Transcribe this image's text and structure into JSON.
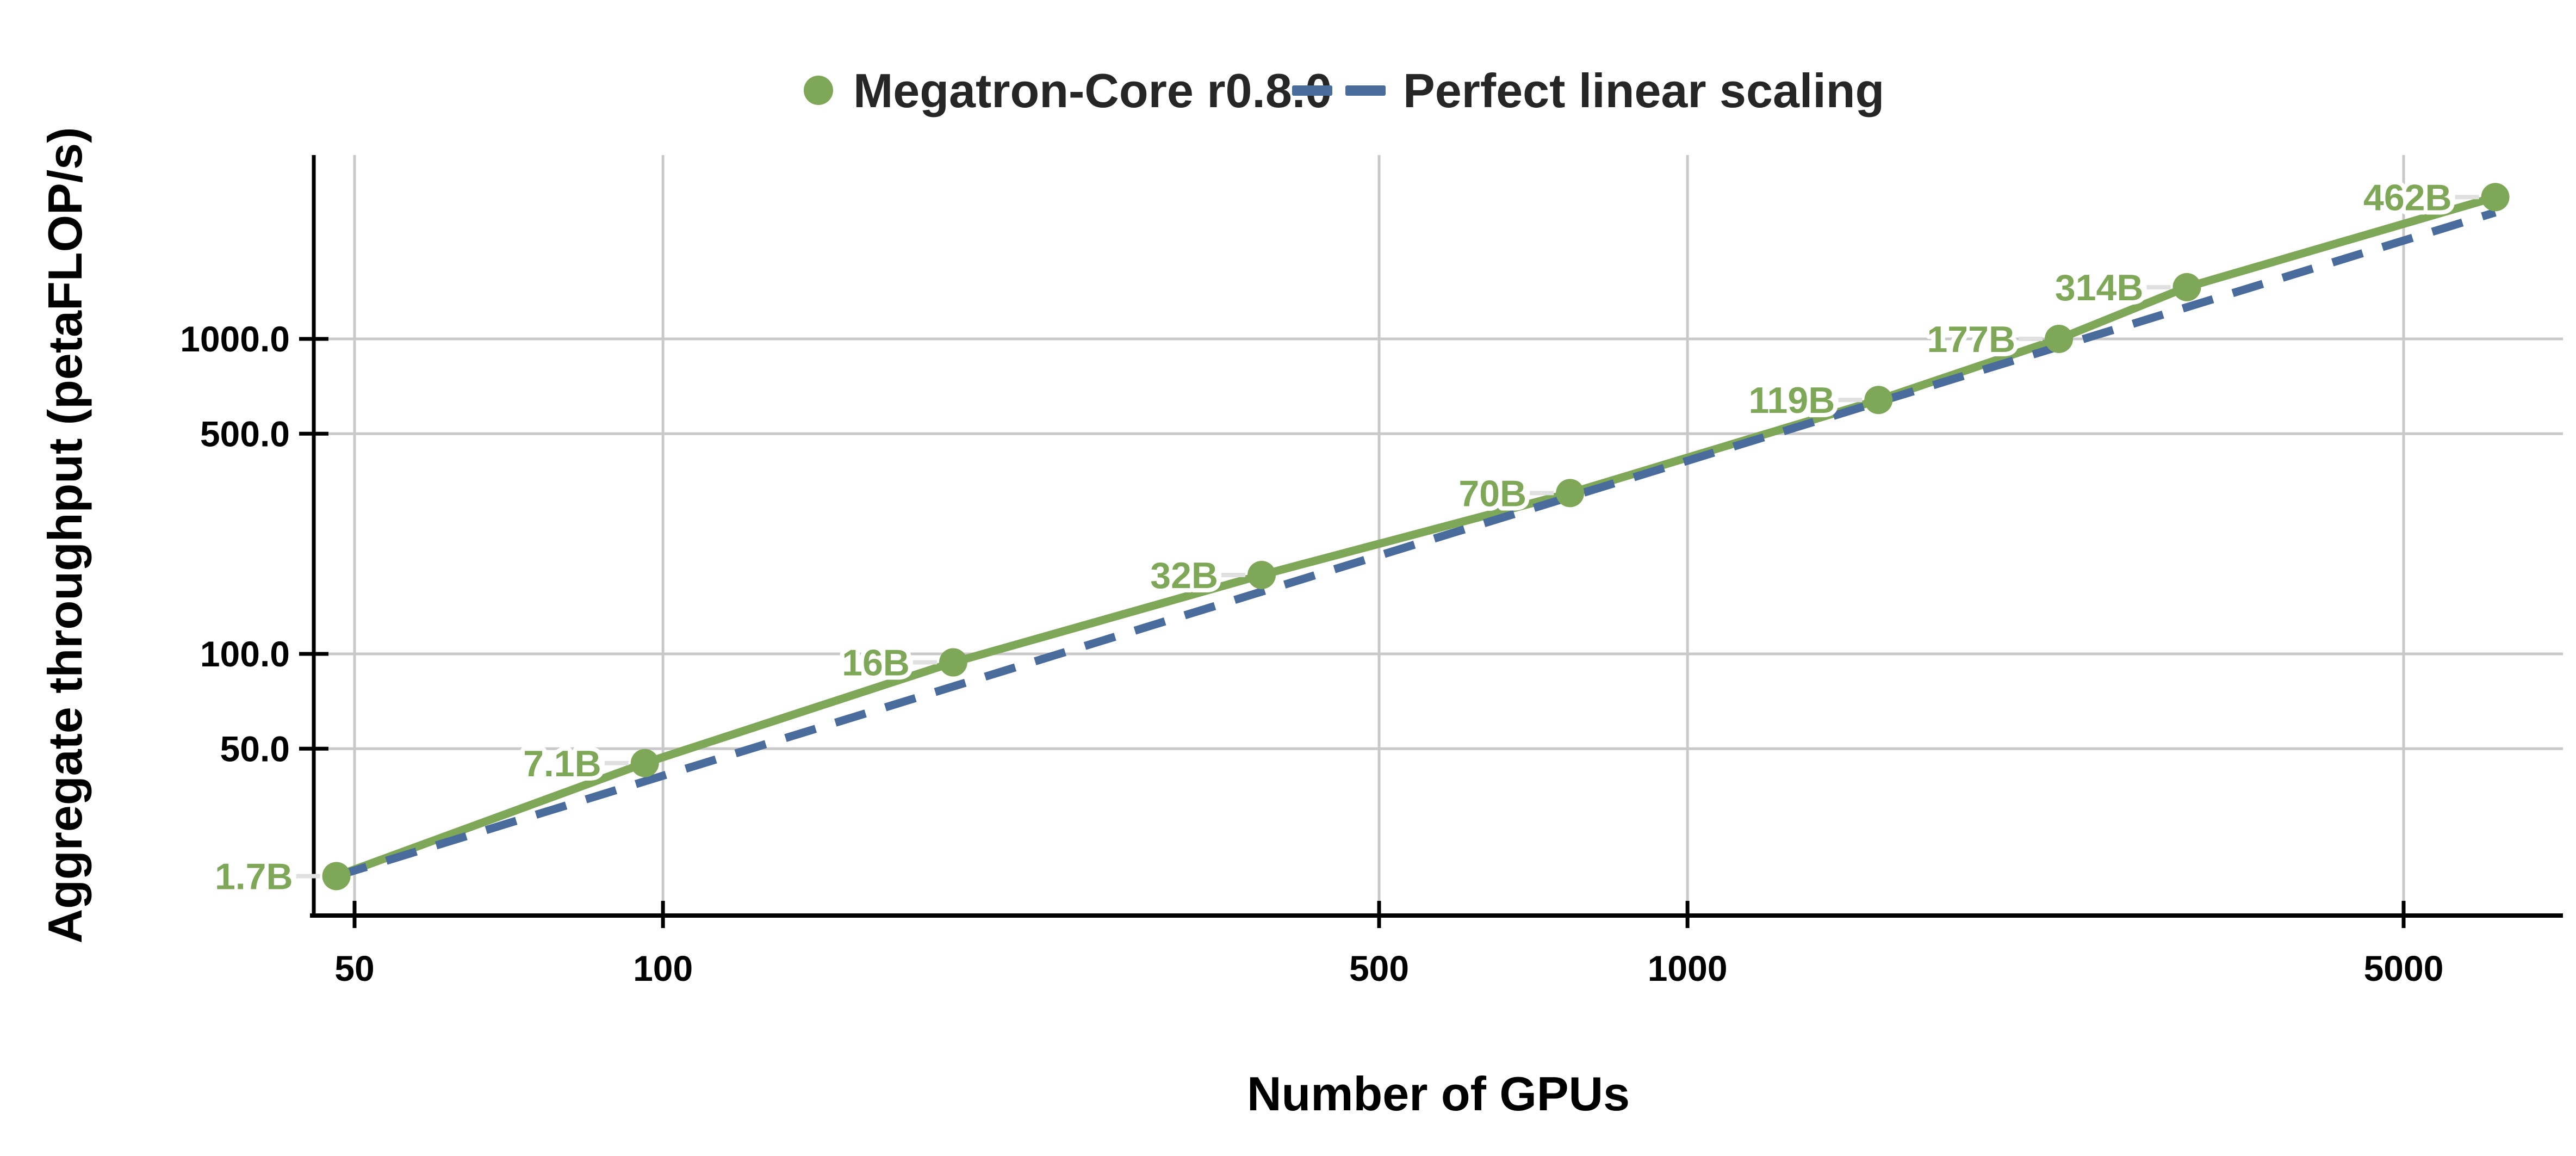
{
  "legend": {
    "series1_label": "Megatron-Core r0.8.0",
    "series2_label": "Perfect linear scaling"
  },
  "colors": {
    "megatron_green": "#7EA757",
    "perfect_blue": "#4A6C9C",
    "gridline_gray": "#C9C9C9",
    "leader_gray": "#E0E0E0",
    "axis_black": "#000000",
    "legend_text": "#262626",
    "background": "#FFFFFF"
  },
  "chart_data": {
    "type": "line",
    "title": "",
    "xlabel": "Number of GPUs",
    "ylabel": "Aggregate throughput (petaFLOP/s)",
    "x_scale": "log",
    "y_scale": "log",
    "grid": true,
    "legend_position": "top-center",
    "x_axis": {
      "label": "Number of GPUs",
      "ticks": [
        {
          "value": 50,
          "label": "50"
        },
        {
          "value": 100,
          "label": "100"
        },
        {
          "value": 500,
          "label": "500"
        },
        {
          "value": 1000,
          "label": "1000"
        },
        {
          "value": 5000,
          "label": "5000"
        }
      ],
      "range": [
        45,
        7200
      ]
    },
    "y_axis": {
      "label": "Aggregate throughput (petaFLOP/s)",
      "ticks": [
        {
          "value": 1000,
          "label": "1000.0"
        },
        {
          "value": 500,
          "label": "500.0"
        },
        {
          "value": 100,
          "label": "100.0"
        },
        {
          "value": 50,
          "label": "50.0"
        }
      ],
      "range": [
        15,
        3800
      ]
    },
    "series": [
      {
        "name": "Megatron-Core r0.8.0",
        "color": "#7EA757",
        "style": "solid",
        "marker": "circle",
        "points": [
          {
            "gpus": 48,
            "pflops": 19.7,
            "label": "1.7B"
          },
          {
            "gpus": 96,
            "pflops": 45,
            "label": "7.1B"
          },
          {
            "gpus": 192,
            "pflops": 94,
            "label": "16B"
          },
          {
            "gpus": 384,
            "pflops": 178,
            "label": "32B"
          },
          {
            "gpus": 768,
            "pflops": 324,
            "label": "70B"
          },
          {
            "gpus": 1536,
            "pflops": 640,
            "label": "119B"
          },
          {
            "gpus": 2304,
            "pflops": 1000,
            "label": "177B"
          },
          {
            "gpus": 3072,
            "pflops": 1460,
            "label": "314B"
          },
          {
            "gpus": 6144,
            "pflops": 2820,
            "label": "462B"
          }
        ]
      },
      {
        "name": "Perfect linear scaling",
        "color": "#4A6C9C",
        "style": "dashed",
        "marker": "none",
        "points": [
          {
            "gpus": 48,
            "pflops": 19.7
          },
          {
            "gpus": 6144,
            "pflops": 2522
          }
        ]
      }
    ]
  }
}
